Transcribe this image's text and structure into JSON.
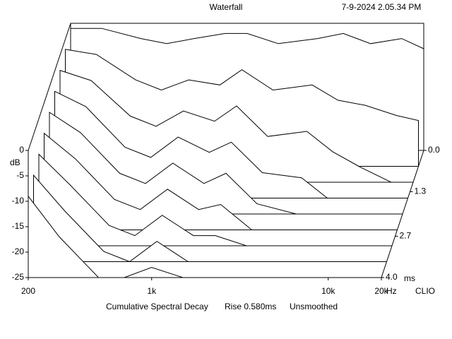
{
  "chart_data": {
    "type": "waterfall",
    "title": "Waterfall",
    "timestamp": "7-9-2024 2.05.34 PM",
    "brand": "CLIO",
    "caption": [
      "Cumulative Spectral Decay",
      "Rise 0.580ms",
      "Unsmoothed"
    ],
    "y_label": "dB",
    "x_unit": "Hz",
    "t_unit": "ms",
    "xlim": [
      200,
      20000
    ],
    "log_x": true,
    "xticks": [
      200,
      {
        "value": 1000,
        "label": "1k"
      },
      {
        "value": 10000,
        "label": "10k"
      },
      {
        "value": 20000,
        "label": "20k"
      }
    ],
    "ylim": [
      -25,
      0
    ],
    "yticks": [
      0,
      -5,
      -10,
      -15,
      -20,
      -25
    ],
    "tlim": [
      0,
      4
    ],
    "tticks": [
      {
        "value": 0,
        "label": "0.0"
      },
      1.3,
      2.7,
      {
        "value": 4,
        "label": "4.0"
      }
    ],
    "color": "#000000",
    "frequencies": [
      200,
      300,
      500,
      700,
      1000,
      1500,
      2000,
      3000,
      5000,
      7000,
      10000,
      15000,
      20000
    ],
    "slices": [
      {
        "time": 0,
        "values": [
          -1,
          -1,
          -3,
          -4,
          -3,
          -2,
          -2,
          -4,
          -3,
          -2,
          -4,
          -3,
          -5
        ]
      },
      {
        "time": 0.5,
        "values": [
          -2,
          -3,
          -8,
          -10,
          -8,
          -9,
          -6,
          -10,
          -9,
          -12,
          -13,
          -15,
          -16
        ]
      },
      {
        "time": 1,
        "values": [
          -3,
          -5,
          -12,
          -14,
          -11,
          -13,
          -10,
          -16,
          -15,
          -19,
          -22,
          -25,
          -25
        ]
      },
      {
        "time": 1.5,
        "values": [
          -4,
          -7,
          -15,
          -17,
          -13,
          -16,
          -14,
          -20,
          -21,
          -25,
          -25,
          -25,
          -25
        ]
      },
      {
        "time": 2,
        "values": [
          -5,
          -9,
          -17,
          -19,
          -15,
          -19,
          -17,
          -23,
          -25,
          -25,
          -25,
          -25,
          -25
        ]
      },
      {
        "time": 2.5,
        "values": [
          -6,
          -11,
          -19,
          -21,
          -17,
          -21,
          -20,
          -25,
          -25,
          -25,
          -25,
          -25,
          -25
        ]
      },
      {
        "time": 3,
        "values": [
          -7,
          -13,
          -21,
          -23,
          -19,
          -23,
          -23,
          -25,
          -25,
          -25,
          -25,
          -25,
          -25
        ]
      },
      {
        "time": 3.5,
        "values": [
          -8,
          -15,
          -23,
          -25,
          -21,
          -25,
          -25,
          -25,
          -25,
          -25,
          -25,
          -25,
          -25
        ]
      },
      {
        "time": 4,
        "values": [
          -9,
          -17,
          -25,
          -25,
          -23,
          -25,
          -25,
          -25,
          -25,
          -25,
          -25,
          -25,
          -25
        ]
      }
    ]
  }
}
